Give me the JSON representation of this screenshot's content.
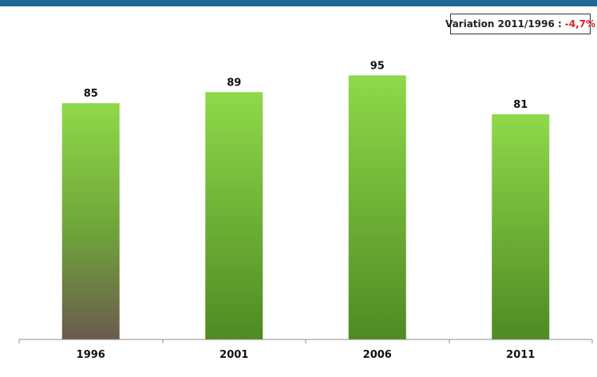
{
  "header": {
    "title": ""
  },
  "variation": {
    "label": "Variation 2011/1996 :",
    "value": "-4,7%",
    "value_color": "#e02020"
  },
  "chart_data": {
    "type": "bar",
    "title": "",
    "xlabel": "",
    "ylabel": "",
    "categories": [
      "1996",
      "2001",
      "2006",
      "2011"
    ],
    "values": [
      85,
      89,
      95,
      81
    ],
    "ylim": [
      0,
      100
    ],
    "grid": false,
    "colors": {
      "bar_top": "#8fd94a",
      "bar_bottom": "#4f8a23",
      "first_bar_bottom": "#6b5a4e",
      "header_strip": "#1c6a94"
    }
  }
}
